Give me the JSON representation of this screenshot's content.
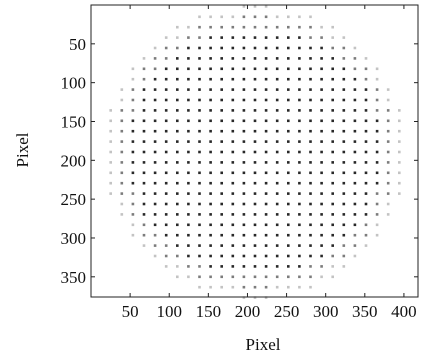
{
  "chart_data": {
    "type": "image",
    "xlabel": "Pixel",
    "ylabel": "Pixel",
    "xlim": [
      0,
      418
    ],
    "ylim": [
      0,
      376
    ],
    "y_inverted": true,
    "xticks": [
      50,
      100,
      150,
      200,
      250,
      300,
      350,
      400
    ],
    "yticks": [
      50,
      100,
      150,
      200,
      250,
      300,
      350
    ]
  }
}
